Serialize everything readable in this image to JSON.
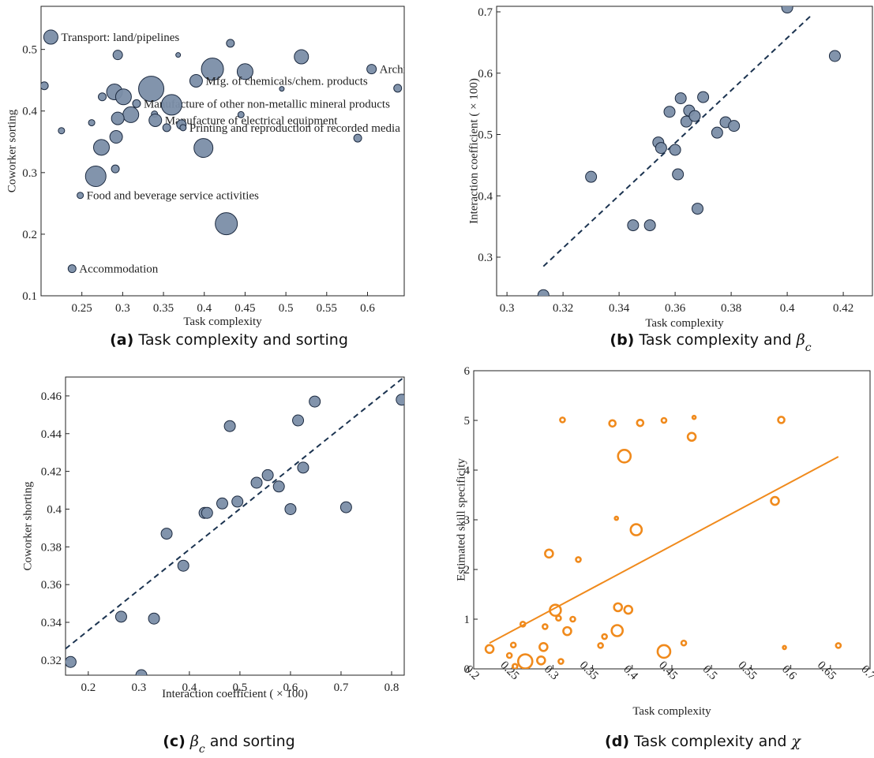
{
  "chart_data": [
    {
      "type": "scatter",
      "caption_tag": "(a)",
      "caption": [
        {
          "text": "Task complexity and sorting",
          "style": "plain"
        }
      ],
      "x_label": "Task complexity",
      "y_label": "Coworker sorting",
      "xlim": [
        0.2,
        0.645
      ],
      "ylim": [
        0.1,
        0.57
      ],
      "xticks": [
        0.25,
        0.3,
        0.35,
        0.4,
        0.45,
        0.5,
        0.55,
        0.6
      ],
      "yticks": [
        0.1,
        0.2,
        0.3,
        0.4,
        0.5
      ],
      "color": "#7b8ea8",
      "edge_color": "#1c2a40",
      "x": [
        0.212,
        0.204,
        0.225,
        0.294,
        0.432,
        0.368,
        0.41,
        0.45,
        0.519,
        0.605,
        0.637,
        0.495,
        0.39,
        0.335,
        0.29,
        0.275,
        0.301,
        0.317,
        0.36,
        0.31,
        0.294,
        0.339,
        0.34,
        0.262,
        0.372,
        0.374,
        0.354,
        0.445,
        0.588,
        0.292,
        0.274,
        0.399,
        0.291,
        0.267,
        0.248,
        0.427,
        0.238
      ],
      "y": [
        0.52,
        0.441,
        0.368,
        0.491,
        0.51,
        0.491,
        0.468,
        0.464,
        0.488,
        0.468,
        0.437,
        0.436,
        0.449,
        0.436,
        0.431,
        0.423,
        0.423,
        0.412,
        0.41,
        0.394,
        0.388,
        0.395,
        0.385,
        0.381,
        0.378,
        0.373,
        0.373,
        0.394,
        0.356,
        0.358,
        0.341,
        0.34,
        0.306,
        0.294,
        0.263,
        0.217,
        0.144
      ],
      "sizes": [
        9,
        5,
        4,
        6,
        5,
        3,
        14,
        10,
        9,
        6,
        5,
        3,
        8,
        16,
        10,
        5,
        10,
        5,
        13,
        10,
        8,
        4,
        8,
        4,
        6,
        4,
        5,
        4,
        5,
        8,
        10,
        12,
        5,
        13,
        4,
        14,
        5
      ],
      "labels": [
        "Transport: land/pipelines",
        null,
        null,
        null,
        null,
        null,
        null,
        null,
        null,
        "Architect./engin",
        null,
        null,
        "Mfg. of chemicals/chem. products",
        null,
        null,
        null,
        null,
        "Manufacture of other non-metallic mineral products",
        null,
        null,
        null,
        null,
        "Manufacture of electrical equipment",
        null,
        null,
        "Printing and reproduction of recorded media",
        null,
        null,
        null,
        null,
        null,
        null,
        null,
        null,
        "Food and beverage service activities",
        null,
        "Accommodation"
      ]
    },
    {
      "type": "scatter",
      "caption_tag": "(b)",
      "caption": [
        {
          "text": "Task complexity and ",
          "style": "plain"
        },
        {
          "text": "β",
          "style": "math"
        },
        {
          "text": "c",
          "style": "sub"
        }
      ],
      "x_label": "Task complexity",
      "y_label": "Interaction coefficient ( × 100)",
      "xlim": [
        0.2963,
        0.4304
      ],
      "ylim": [
        0.237,
        0.709
      ],
      "xticks": [
        0.3,
        0.32,
        0.34,
        0.36,
        0.38,
        0.4,
        0.42
      ],
      "yticks": [
        0.3,
        0.4,
        0.5,
        0.6,
        0.7
      ],
      "color": "#7b8ea8",
      "edge_color": "#1c2a40",
      "x": [
        0.313,
        0.33,
        0.345,
        0.351,
        0.354,
        0.355,
        0.358,
        0.36,
        0.361,
        0.362,
        0.364,
        0.365,
        0.367,
        0.37,
        0.368,
        0.375,
        0.378,
        0.381,
        0.4,
        0.417
      ],
      "y": [
        0.238,
        0.431,
        0.352,
        0.352,
        0.487,
        0.478,
        0.537,
        0.475,
        0.435,
        0.559,
        0.521,
        0.539,
        0.53,
        0.561,
        0.379,
        0.503,
        0.52,
        0.514,
        0.707,
        0.628
      ],
      "sizes": [
        7,
        7,
        7,
        7,
        7,
        7,
        7,
        7,
        7,
        7,
        7,
        7,
        7,
        7,
        7,
        7,
        7,
        7,
        7,
        7
      ],
      "fit": {
        "x": [
          0.313,
          0.409
        ],
        "y": [
          0.285,
          0.696
        ],
        "color": "#1b3350",
        "dashed": true
      }
    },
    {
      "type": "scatter",
      "caption_tag": "(c)",
      "caption": [
        {
          "text": "β",
          "style": "math"
        },
        {
          "text": "c",
          "style": "sub"
        },
        {
          "text": " and sorting",
          "style": "plain"
        }
      ],
      "x_label": "Interaction coefficient ( × 100)",
      "y_label": "Coworker shorting",
      "xlim": [
        0.155,
        0.825
      ],
      "ylim": [
        0.312,
        0.47
      ],
      "xticks": [
        0.2,
        0.3,
        0.4,
        0.5,
        0.6,
        0.7,
        0.8
      ],
      "yticks": [
        0.32,
        0.34,
        0.36,
        0.38,
        0.4,
        0.42,
        0.44,
        0.46
      ],
      "color": "#7b8ea8",
      "edge_color": "#1c2a40",
      "x": [
        0.165,
        0.265,
        0.305,
        0.33,
        0.355,
        0.388,
        0.43,
        0.435,
        0.465,
        0.48,
        0.495,
        0.533,
        0.555,
        0.577,
        0.6,
        0.615,
        0.625,
        0.648,
        0.71,
        0.82
      ],
      "y": [
        0.319,
        0.343,
        0.312,
        0.342,
        0.387,
        0.37,
        0.398,
        0.398,
        0.403,
        0.444,
        0.404,
        0.414,
        0.418,
        0.412,
        0.4,
        0.447,
        0.422,
        0.457,
        0.401,
        0.458
      ],
      "sizes": [
        7,
        7,
        7,
        7,
        7,
        7,
        7,
        7,
        7,
        7,
        7,
        7,
        7,
        7,
        7,
        7,
        7,
        7,
        7,
        7
      ],
      "fit": {
        "x": [
          0.155,
          0.825
        ],
        "y": [
          0.326,
          0.47
        ],
        "color": "#1b3350",
        "dashed": true
      }
    },
    {
      "type": "scatter",
      "caption_tag": "(d)",
      "caption": [
        {
          "text": "Task complexity and ",
          "style": "plain"
        },
        {
          "text": "χ",
          "style": "math"
        }
      ],
      "x_label": "Task complexity",
      "y_label": "Estimated skill specificity",
      "xlim": [
        0.2,
        0.7
      ],
      "ylim": [
        0,
        6
      ],
      "xticks": [
        0.2,
        0.25,
        0.3,
        0.35,
        0.4,
        0.45,
        0.5,
        0.55,
        0.6,
        0.65,
        0.7
      ],
      "yticks": [
        0,
        1,
        2,
        3,
        4,
        5,
        6
      ],
      "xtick_rotation": 45,
      "hollow": true,
      "color": "#f08a1c",
      "edge_color": "#f08a1c",
      "x": [
        0.22,
        0.245,
        0.25,
        0.252,
        0.262,
        0.265,
        0.285,
        0.288,
        0.29,
        0.295,
        0.303,
        0.307,
        0.31,
        0.312,
        0.318,
        0.325,
        0.332,
        0.36,
        0.365,
        0.375,
        0.38,
        0.381,
        0.382,
        0.39,
        0.395,
        0.405,
        0.41,
        0.44,
        0.44,
        0.465,
        0.475,
        0.478,
        0.58,
        0.588,
        0.592,
        0.66
      ],
      "y": [
        0.4,
        0.27,
        0.48,
        0.05,
        0.9,
        0.15,
        0.17,
        0.44,
        0.85,
        2.32,
        1.18,
        1.02,
        0.15,
        5.01,
        0.76,
        1.0,
        2.2,
        0.47,
        0.65,
        4.94,
        3.03,
        0.77,
        1.24,
        4.28,
        1.19,
        2.8,
        4.95,
        5.0,
        0.35,
        0.52,
        4.67,
        5.06,
        3.38,
        5.01,
        0.43,
        0.47
      ],
      "sizes": [
        5,
        3,
        3,
        3,
        3,
        9,
        5,
        5,
        3,
        5,
        7,
        3,
        3,
        3,
        5,
        3,
        3,
        3,
        3,
        4,
        2,
        7,
        5,
        8,
        5,
        7,
        4,
        3,
        8,
        3,
        5,
        2,
        5,
        4,
        2,
        3
      ],
      "fit": {
        "x": [
          0.22,
          0.66
        ],
        "y": [
          0.52,
          4.27
        ],
        "color": "#f08a1c",
        "dashed": false
      }
    }
  ]
}
